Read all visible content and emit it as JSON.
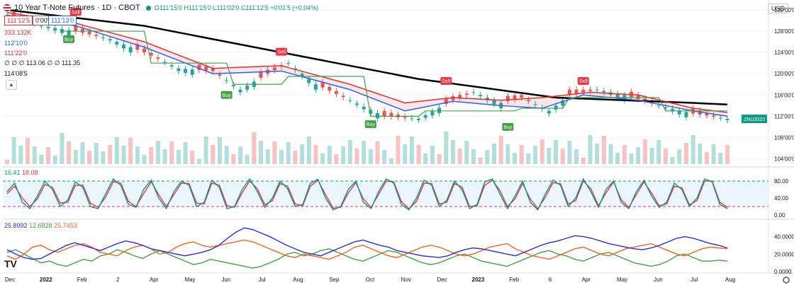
{
  "header": {
    "title": "10 Year T-Note Futures · 1D · CBOT",
    "ohlc": "O111'15'0 H111'15'0 L111'02'0 C111'12'5 +0'01'5 (+0.04%)",
    "price_boxes": [
      "111'12'5",
      "0'00'5",
      "111'13'0"
    ]
  },
  "legend": {
    "volume": "333.132K",
    "line1": "112'10'0",
    "line2": "111'22'0",
    "line3": "∅ ∅ ∅ 113.06 ∅ ∅ 111.35",
    "line4": "114'08'5",
    "stoch": [
      "16.41",
      "18.08"
    ],
    "dmi": [
      "25.8992",
      "12.6828",
      "25.7453"
    ]
  },
  "currency": "USD",
  "logo": "TV",
  "colors": {
    "up": "#26a69a",
    "down": "#ef5350",
    "ma_black": "#000000",
    "ma_blue": "#2962ff",
    "ma_red": "#e03131",
    "support": "#43a047",
    "stoch_k": "#089981",
    "stoch_d": "#f23645",
    "dmi_adx": "#2c2cd9",
    "dmi_plus": "#43a047",
    "dmi_minus": "#f26522",
    "sell": "#f23645",
    "buy": "#43a047"
  },
  "chart_data": {
    "type": "candlestick",
    "symbol": "ZNU2023",
    "x_ticks": [
      "Dec",
      "2022",
      "Feb",
      "2",
      "Apr",
      "May",
      "Jun",
      "Jul",
      "Aug",
      "Sep",
      "Oct",
      "Nov",
      "Dec",
      "2023",
      "Feb",
      "6",
      "Apr",
      "May",
      "Jun",
      "Jul",
      "Aug"
    ],
    "price_axis": {
      "ticks": [
        "104'00'0",
        "108'00'0",
        "112'00'0",
        "116'00'0",
        "120'00'0",
        "124'00'0",
        "128'00'0",
        "132'00'0"
      ],
      "ylim": [
        103,
        132
      ]
    },
    "price_anchors": [
      [
        0,
        131
      ],
      [
        5,
        129
      ],
      [
        10,
        128
      ],
      [
        15,
        126.5
      ],
      [
        20,
        124
      ],
      [
        25,
        121
      ],
      [
        30,
        120.5
      ],
      [
        34,
        117
      ],
      [
        38,
        120
      ],
      [
        41,
        122
      ],
      [
        45,
        118
      ],
      [
        50,
        115
      ],
      [
        55,
        112
      ],
      [
        60,
        111.5
      ],
      [
        65,
        115
      ],
      [
        68,
        116.5
      ],
      [
        72,
        114.5
      ],
      [
        75,
        115.5
      ],
      [
        79,
        113
      ],
      [
        82,
        116
      ],
      [
        86,
        117
      ],
      [
        90,
        116
      ],
      [
        95,
        114
      ],
      [
        100,
        112.5
      ],
      [
        105,
        111.5
      ]
    ],
    "ma_black": [
      [
        0,
        132
      ],
      [
        20,
        129
      ],
      [
        40,
        124
      ],
      [
        60,
        119
      ],
      [
        80,
        115.5
      ],
      [
        100,
        114.5
      ],
      [
        105,
        114.2
      ]
    ],
    "ma_blue": [
      [
        0,
        131
      ],
      [
        10,
        129
      ],
      [
        20,
        125
      ],
      [
        30,
        120
      ],
      [
        40,
        120.5
      ],
      [
        50,
        117
      ],
      [
        58,
        113
      ],
      [
        65,
        114.8
      ],
      [
        72,
        114
      ],
      [
        78,
        113.5
      ],
      [
        84,
        116
      ],
      [
        92,
        115
      ],
      [
        100,
        113
      ],
      [
        105,
        112
      ]
    ],
    "ma_red": [
      [
        0,
        131.5
      ],
      [
        10,
        129.5
      ],
      [
        20,
        126
      ],
      [
        30,
        121
      ],
      [
        40,
        121.5
      ],
      [
        50,
        118
      ],
      [
        58,
        114.5
      ],
      [
        65,
        115.5
      ],
      [
        72,
        115
      ],
      [
        78,
        115.5
      ],
      [
        85,
        116.5
      ],
      [
        92,
        116
      ],
      [
        100,
        113.5
      ],
      [
        105,
        112.7
      ]
    ],
    "support": [
      [
        8,
        128
      ],
      [
        20,
        128
      ],
      [
        21,
        122
      ],
      [
        32,
        122
      ],
      [
        33,
        118
      ],
      [
        40,
        118
      ],
      [
        41,
        119.5
      ],
      [
        52,
        119.5
      ],
      [
        53,
        112
      ],
      [
        60,
        112
      ],
      [
        61,
        113
      ],
      [
        74,
        113
      ],
      [
        75,
        113.5
      ],
      [
        81,
        113.5
      ],
      [
        82,
        115.5
      ],
      [
        95,
        115.5
      ],
      [
        96,
        113
      ],
      [
        105,
        113
      ]
    ],
    "signals": [
      {
        "label": "Sell",
        "i": 10,
        "price": 130.5,
        "kind": "sell"
      },
      {
        "label": "Buy",
        "i": 9,
        "price": 127.5,
        "kind": "buy"
      },
      {
        "label": "Sell",
        "i": 40,
        "price": 123,
        "kind": "sell"
      },
      {
        "label": "Buy",
        "i": 32,
        "price": 117,
        "kind": "buy"
      },
      {
        "label": "Sell",
        "i": 64,
        "price": 117.5,
        "kind": "sell"
      },
      {
        "label": "Buy",
        "i": 53,
        "price": 111.5,
        "kind": "buy"
      },
      {
        "label": "Buy",
        "i": 73,
        "price": 111,
        "kind": "buy"
      },
      {
        "label": "Sell",
        "i": 84,
        "price": 117.5,
        "kind": "sell"
      }
    ],
    "volume_scale": 1,
    "stoch": {
      "ticks": [
        "80.00",
        "40.00",
        "0.00"
      ],
      "ylim": [
        0,
        100
      ],
      "upper": 80,
      "lower": 20,
      "k": [
        55,
        75,
        30,
        15,
        45,
        80,
        60,
        20,
        35,
        78,
        65,
        20,
        15,
        50,
        85,
        70,
        25,
        18,
        60,
        82,
        40,
        15,
        55,
        80,
        70,
        20,
        30,
        82,
        65,
        15,
        20,
        60,
        85,
        55,
        18,
        40,
        80,
        62,
        20,
        25,
        75,
        84,
        40,
        12,
        20,
        60,
        80,
        30,
        15,
        55,
        85,
        75,
        25,
        12,
        40,
        82,
        70,
        20,
        35,
        80,
        60,
        15,
        25,
        78,
        85,
        50,
        15,
        45,
        80,
        30,
        12,
        50,
        82,
        70,
        20,
        40,
        85,
        55,
        18,
        60,
        80,
        30,
        15,
        55,
        82,
        45,
        18,
        30,
        75,
        60,
        20,
        40,
        85,
        78,
        25,
        15
      ],
      "d": [
        50,
        68,
        40,
        20,
        38,
        72,
        65,
        28,
        30,
        70,
        70,
        28,
        18,
        42,
        78,
        75,
        32,
        20,
        50,
        78,
        48,
        20,
        48,
        75,
        74,
        28,
        26,
        75,
        70,
        22,
        18,
        52,
        80,
        62,
        24,
        34,
        74,
        68,
        26,
        22,
        68,
        82,
        48,
        16,
        18,
        52,
        76,
        38,
        18,
        48,
        80,
        78,
        32,
        15,
        32,
        75,
        74,
        26,
        30,
        74,
        66,
        20,
        22,
        70,
        82,
        58,
        20,
        38,
        74,
        38,
        15,
        42,
        76,
        74,
        26,
        34,
        80,
        62,
        22,
        52,
        78,
        36,
        18,
        48,
        78,
        52,
        22,
        26,
        68,
        64,
        24,
        34,
        80,
        80,
        30,
        18
      ]
    },
    "dmi": {
      "ticks": [
        "40.0000",
        "20.0000",
        "0.0000"
      ],
      "ylim": [
        0,
        55
      ],
      "adx": [
        25,
        20,
        16,
        14,
        15,
        20,
        25,
        30,
        33,
        30,
        27,
        24,
        28,
        32,
        35,
        33,
        30,
        26,
        24,
        22,
        20,
        18,
        20,
        22,
        25,
        30,
        38,
        45,
        50,
        48,
        44,
        40,
        35,
        30,
        26,
        22,
        20,
        18,
        22,
        26,
        30,
        34,
        36,
        33,
        30,
        28,
        24,
        22,
        20,
        18,
        17,
        16,
        18,
        22,
        25,
        27,
        26,
        24,
        22,
        20,
        18,
        22,
        26,
        30,
        33,
        35,
        38,
        41,
        40,
        38,
        35,
        32,
        30,
        28,
        26,
        25,
        27,
        30,
        34,
        38,
        40,
        38,
        35,
        32,
        30,
        27
      ],
      "plus": [
        22,
        25,
        20,
        15,
        10,
        12,
        8,
        6,
        10,
        14,
        12,
        18,
        20,
        25,
        22,
        18,
        15,
        20,
        24,
        20,
        16,
        12,
        8,
        10,
        14,
        12,
        10,
        8,
        6,
        4,
        6,
        10,
        14,
        20,
        22,
        18,
        20,
        24,
        26,
        22,
        18,
        14,
        12,
        16,
        20,
        24,
        22,
        18,
        14,
        10,
        8,
        10,
        14,
        18,
        20,
        16,
        12,
        10,
        8,
        6,
        10,
        14,
        18,
        22,
        24,
        20,
        18,
        14,
        12,
        16,
        20,
        22,
        18,
        14,
        10,
        8,
        6,
        8,
        12,
        18,
        20,
        16,
        12,
        12,
        13,
        12
      ],
      "minus": [
        18,
        14,
        20,
        28,
        30,
        25,
        22,
        26,
        30,
        32,
        28,
        22,
        20,
        18,
        24,
        28,
        30,
        26,
        20,
        22,
        28,
        32,
        34,
        30,
        28,
        30,
        32,
        34,
        36,
        34,
        30,
        26,
        22,
        18,
        16,
        20,
        18,
        16,
        14,
        18,
        22,
        28,
        30,
        26,
        22,
        18,
        16,
        20,
        24,
        28,
        30,
        28,
        24,
        20,
        18,
        20,
        24,
        28,
        30,
        32,
        26,
        22,
        18,
        16,
        14,
        18,
        22,
        26,
        28,
        24,
        20,
        18,
        22,
        26,
        28,
        30,
        32,
        28,
        24,
        20,
        18,
        22,
        26,
        28,
        27,
        26
      ]
    }
  }
}
